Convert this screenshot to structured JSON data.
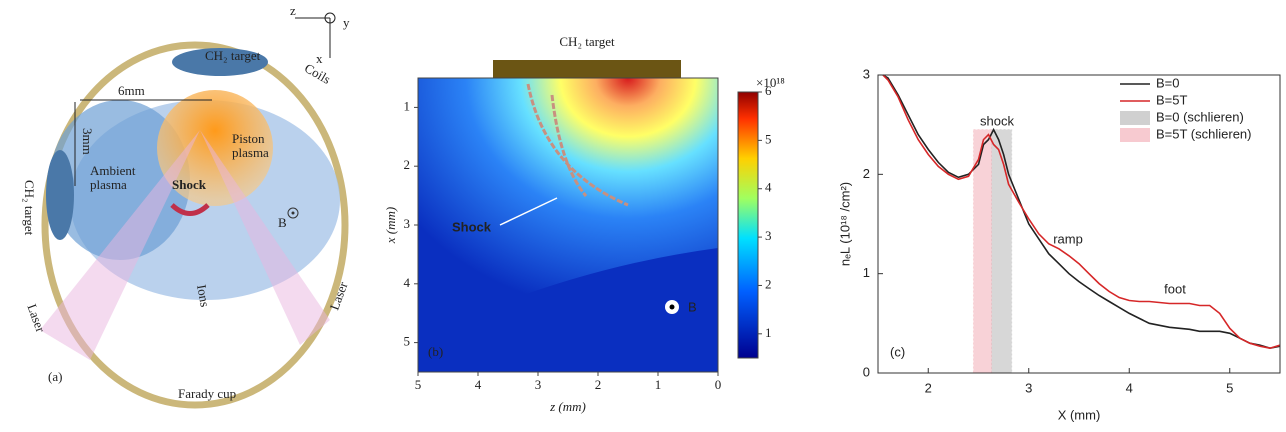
{
  "diagram": {
    "axis_z": "z",
    "axis_y": "y",
    "axis_x": "x",
    "top_target": "CH₂ target",
    "coils": "Coils",
    "width_label": "6mm",
    "height_label": "3mm",
    "piston_plasma": [
      "Piston",
      "plasma"
    ],
    "ambient_plasma": [
      "Ambient",
      "plasma"
    ],
    "side_target": "CH₂ target",
    "shock": "Shock",
    "field": "B",
    "laser_left": "Laser",
    "laser_right": "Laser",
    "ions": "Ions",
    "cup": "Farady cup",
    "panel_label": "(a)"
  },
  "chart_data": [
    {
      "type": "heatmap",
      "target": "CH₂ target",
      "annotation": "Shock",
      "field": "B",
      "panel_label": "(b)",
      "xlabel": "z (mm)",
      "ylabel": "x (mm)",
      "xlim": [
        5,
        0
      ],
      "xticks": [
        5,
        4,
        3,
        2,
        1,
        0
      ],
      "ylim": [
        0.5,
        5.5
      ],
      "yticks": [
        1,
        2,
        3,
        4,
        5
      ],
      "colorbar_label": "×10¹⁸",
      "clim": [
        0.5,
        6
      ],
      "colorbar_ticks": [
        1,
        2,
        3,
        4,
        5,
        6
      ]
    },
    {
      "type": "line",
      "xlabel": "X (mm)",
      "ylabel": "nₑL (10¹⁸ /cm²)",
      "panel_label": "(c)",
      "annotations": [
        "shock",
        "ramp",
        "foot"
      ],
      "xlim": [
        1.5,
        5.5
      ],
      "xticks": [
        2,
        3,
        4,
        5
      ],
      "ylim": [
        0,
        3
      ],
      "yticks": [
        0,
        1,
        2,
        3
      ],
      "legend": "upper right",
      "x": [
        1.55,
        1.6,
        1.7,
        1.8,
        1.9,
        2.0,
        2.1,
        2.2,
        2.3,
        2.4,
        2.5,
        2.55,
        2.6,
        2.65,
        2.7,
        2.75,
        2.8,
        2.9,
        3.0,
        3.1,
        3.2,
        3.3,
        3.4,
        3.5,
        3.6,
        3.7,
        3.8,
        3.9,
        4.0,
        4.1,
        4.2,
        4.3,
        4.4,
        4.5,
        4.6,
        4.7,
        4.8,
        4.9,
        5.0,
        5.1,
        5.2,
        5.3,
        5.4,
        5.5
      ],
      "series": [
        {
          "name": "B=0",
          "color": "#222222",
          "values": [
            3.0,
            2.97,
            2.8,
            2.6,
            2.4,
            2.25,
            2.12,
            2.02,
            1.97,
            2.0,
            2.1,
            2.3,
            2.35,
            2.45,
            2.35,
            2.2,
            2.0,
            1.75,
            1.5,
            1.35,
            1.2,
            1.1,
            1.0,
            0.92,
            0.85,
            0.78,
            0.72,
            0.66,
            0.6,
            0.55,
            0.5,
            0.48,
            0.46,
            0.45,
            0.44,
            0.42,
            0.42,
            0.42,
            0.4,
            0.35,
            0.3,
            0.28,
            0.25,
            0.27
          ]
        },
        {
          "name": "B=5T",
          "color": "#d62728",
          "values": [
            3.0,
            2.95,
            2.78,
            2.55,
            2.35,
            2.2,
            2.08,
            2.0,
            1.95,
            1.98,
            2.15,
            2.35,
            2.4,
            2.3,
            2.25,
            2.1,
            1.9,
            1.72,
            1.55,
            1.4,
            1.3,
            1.25,
            1.18,
            1.1,
            1.0,
            0.9,
            0.82,
            0.76,
            0.73,
            0.72,
            0.72,
            0.71,
            0.7,
            0.7,
            0.7,
            0.68,
            0.68,
            0.6,
            0.45,
            0.35,
            0.3,
            0.27,
            0.25,
            0.28
          ]
        }
      ],
      "spans": [
        {
          "name": "B=0 (schlieren)",
          "color": "#b0b0b0",
          "xmin": 2.63,
          "xmax": 2.83
        },
        {
          "name": "B=5T (schlieren)",
          "color": "#f2a7b0",
          "xmin": 2.45,
          "xmax": 2.63
        }
      ]
    }
  ]
}
